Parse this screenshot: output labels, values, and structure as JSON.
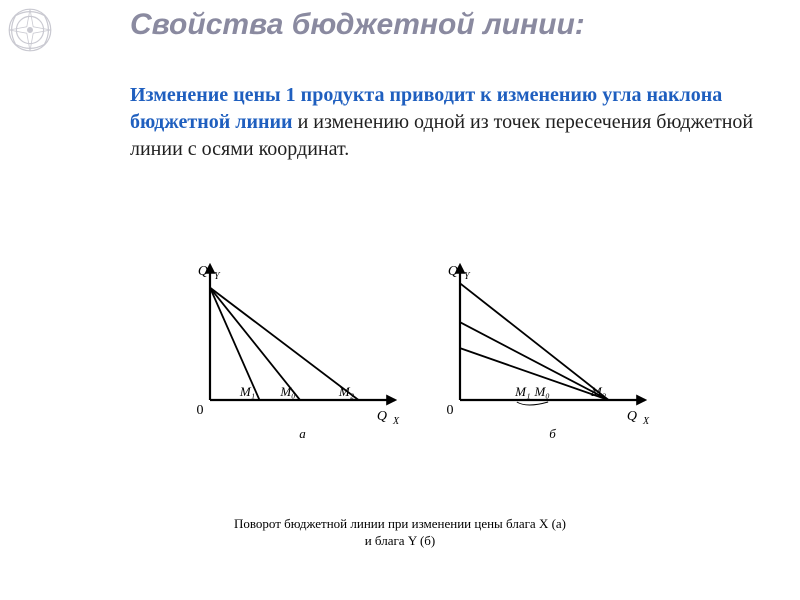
{
  "title": "Свойства бюджетной линии:",
  "paragraph": {
    "strong1": "Изменение цены 1 продукта приводит к изменению ",
    "strong2": "угла наклона бюджетной линии",
    "rest": " и изменению одной из точек пересечения бюджетной линии с осями координат."
  },
  "text_colors": {
    "emphasis": "#1f5fbf",
    "body": "#202020",
    "title": "#8a8aa0"
  },
  "figure": {
    "background": "#ffffff",
    "stroke_color": "#000000",
    "grid_color": "#ffffff",
    "axis_line_width": 2.2,
    "data_line_width": 1.8,
    "axis_font_size": 14,
    "label_font_size": 13,
    "sublabel_font_size": 13,
    "caption": "Поворот бюджетной линии при изменении цены блага X (а)\nи блага Y (б)",
    "panels": [
      {
        "id": "a",
        "origin_label": "0",
        "x_label": "Qₓ",
        "y_label": "Qᵧ",
        "sub_label": "а",
        "xlim": [
          0,
          190
        ],
        "ylim": [
          0,
          140
        ],
        "y_intercept": 130,
        "lines": [
          {
            "x_end": 55,
            "m_label": "M₁"
          },
          {
            "x_end": 100,
            "m_label": "M₀"
          },
          {
            "x_end": 165,
            "m_label": "M₂"
          }
        ]
      },
      {
        "id": "b",
        "origin_label": "0",
        "x_label": "Qₓ",
        "y_label": "Qᵧ",
        "sub_label": "б",
        "xlim": [
          0,
          190
        ],
        "ylim": [
          0,
          140
        ],
        "x_intercept": 165,
        "lines": [
          {
            "y_start": 60,
            "m_label": "M₁"
          },
          {
            "y_start": 90,
            "m_label": "M₀"
          },
          {
            "y_start": 135,
            "m_label": "M₂"
          }
        ]
      }
    ]
  },
  "ornament": {
    "stroke": "#c9c9d1",
    "fill": "#ffffff"
  }
}
